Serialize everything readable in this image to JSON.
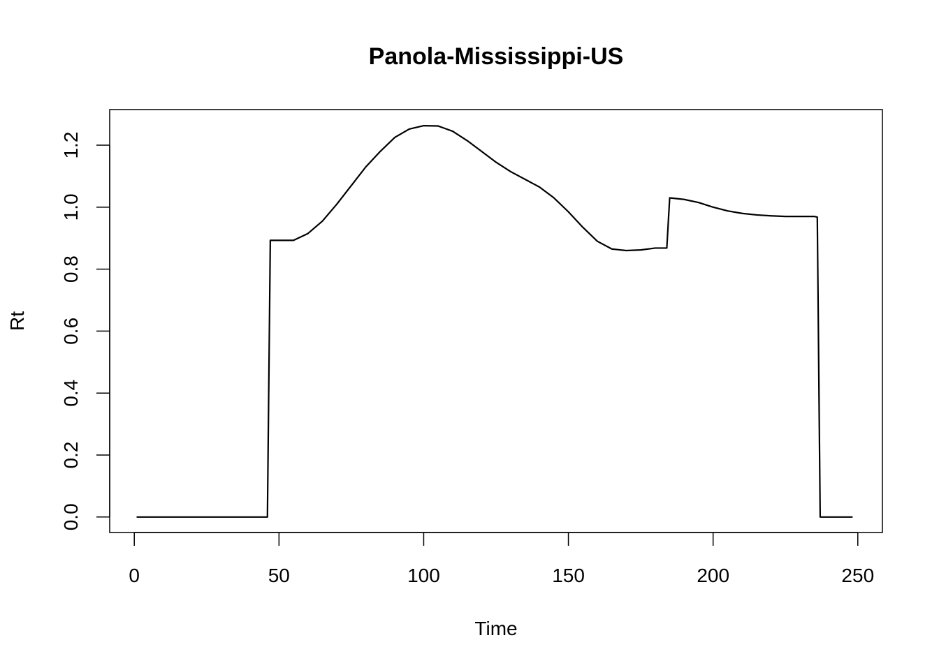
{
  "chart_data": {
    "type": "line",
    "title": "Panola-Mississippi-US",
    "xlabel": "Time",
    "ylabel": "Rt",
    "xlim": [
      -8.5,
      258.5
    ],
    "ylim": [
      -0.05,
      1.315
    ],
    "x_ticks": [
      0,
      50,
      100,
      150,
      200,
      250
    ],
    "y_ticks": [
      0.0,
      0.2,
      0.4,
      0.6,
      0.8,
      1.0,
      1.2
    ],
    "x_tick_labels": [
      "0",
      "50",
      "100",
      "150",
      "200",
      "250"
    ],
    "y_tick_labels": [
      "0.0",
      "0.2",
      "0.4",
      "0.6",
      "0.8",
      "1.0",
      "1.2"
    ],
    "grid": false,
    "legend": "none",
    "line_color": "#000000",
    "series": [
      {
        "x": [
          1,
          10,
          20,
          30,
          40,
          46,
          47,
          50,
          55,
          60,
          65,
          70,
          75,
          80,
          85,
          90,
          95,
          100,
          105,
          110,
          115,
          120,
          125,
          130,
          135,
          140,
          145,
          150,
          155,
          160,
          165,
          170,
          175,
          180,
          184,
          185,
          190,
          195,
          200,
          205,
          210,
          215,
          220,
          225,
          230,
          235,
          236,
          237,
          240,
          248
        ],
        "y": [
          0,
          0,
          0,
          0,
          0,
          0,
          0.893,
          0.893,
          0.893,
          0.915,
          0.955,
          1.01,
          1.07,
          1.13,
          1.18,
          1.225,
          1.252,
          1.263,
          1.262,
          1.245,
          1.215,
          1.18,
          1.145,
          1.115,
          1.09,
          1.065,
          1.03,
          0.985,
          0.935,
          0.89,
          0.865,
          0.86,
          0.862,
          0.868,
          0.868,
          1.03,
          1.025,
          1.015,
          1.0,
          0.988,
          0.98,
          0.975,
          0.972,
          0.97,
          0.97,
          0.97,
          0.968,
          0,
          0,
          0
        ]
      }
    ]
  }
}
